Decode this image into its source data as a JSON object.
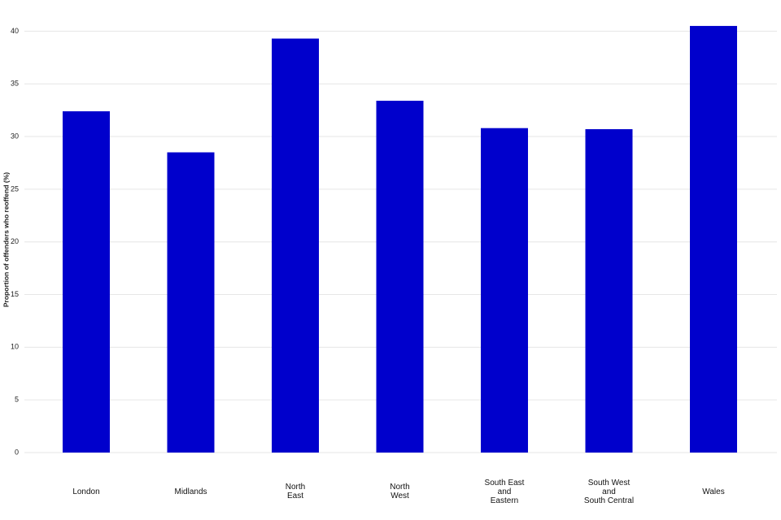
{
  "chart_data": {
    "type": "bar",
    "y_label": "Proportion of offenders who reoffend (%)",
    "categories": [
      "London",
      "Midlands",
      "North\nEast",
      "North\nWest",
      "South East\nand\nEastern",
      "South West\nand\nSouth Central",
      "Wales"
    ],
    "values": [
      32.4,
      28.5,
      39.3,
      33.4,
      30.8,
      30.7,
      40.5
    ],
    "color": "#0000cc",
    "ylim": [
      0,
      42.5
    ],
    "yticks": [
      0,
      5,
      10,
      15,
      20,
      25,
      30,
      35,
      40
    ],
    "grid": true
  }
}
